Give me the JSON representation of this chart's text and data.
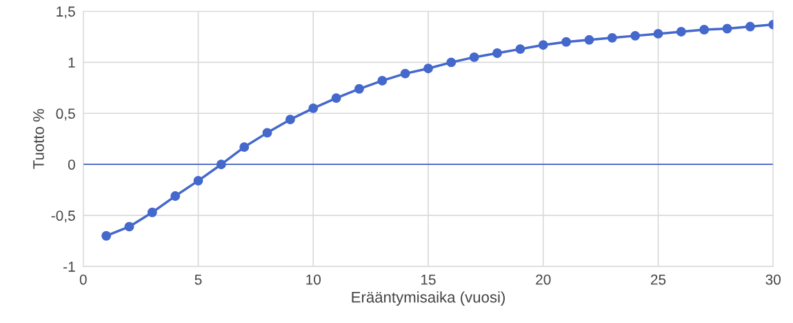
{
  "chart_data": {
    "type": "line",
    "xlabel": "Erääntymisaika (vuosi)",
    "ylabel": "Tuotto %",
    "x": [
      1,
      2,
      3,
      4,
      5,
      6,
      7,
      8,
      9,
      10,
      11,
      12,
      13,
      14,
      15,
      16,
      17,
      18,
      19,
      20,
      21,
      22,
      23,
      24,
      25,
      26,
      27,
      28,
      29,
      30
    ],
    "series": [
      {
        "color": "#4468cc",
        "values": [
          -0.7,
          -0.61,
          -0.47,
          -0.31,
          -0.16,
          0.0,
          0.17,
          0.31,
          0.44,
          0.55,
          0.65,
          0.74,
          0.82,
          0.89,
          0.94,
          1.0,
          1.05,
          1.09,
          1.13,
          1.17,
          1.2,
          1.22,
          1.24,
          1.26,
          1.28,
          1.3,
          1.32,
          1.33,
          1.35,
          1.37
        ]
      }
    ],
    "xlim": [
      0,
      30
    ],
    "xticks": [
      0,
      5,
      10,
      15,
      20,
      25,
      30
    ],
    "ylim": [
      -1,
      1.5
    ],
    "yticks": [
      -1,
      {
        "value": -0.5,
        "label": "-0,5"
      },
      0,
      {
        "value": 0.5,
        "label": "0,5"
      },
      1,
      {
        "value": 1.5,
        "label": "1,5"
      }
    ],
    "ref_lines": [
      {
        "axis": "y",
        "value": 0,
        "color": "#3f5fc0"
      }
    ],
    "grid": true,
    "marker": "circle",
    "line_style": "solid",
    "legend": false
  }
}
